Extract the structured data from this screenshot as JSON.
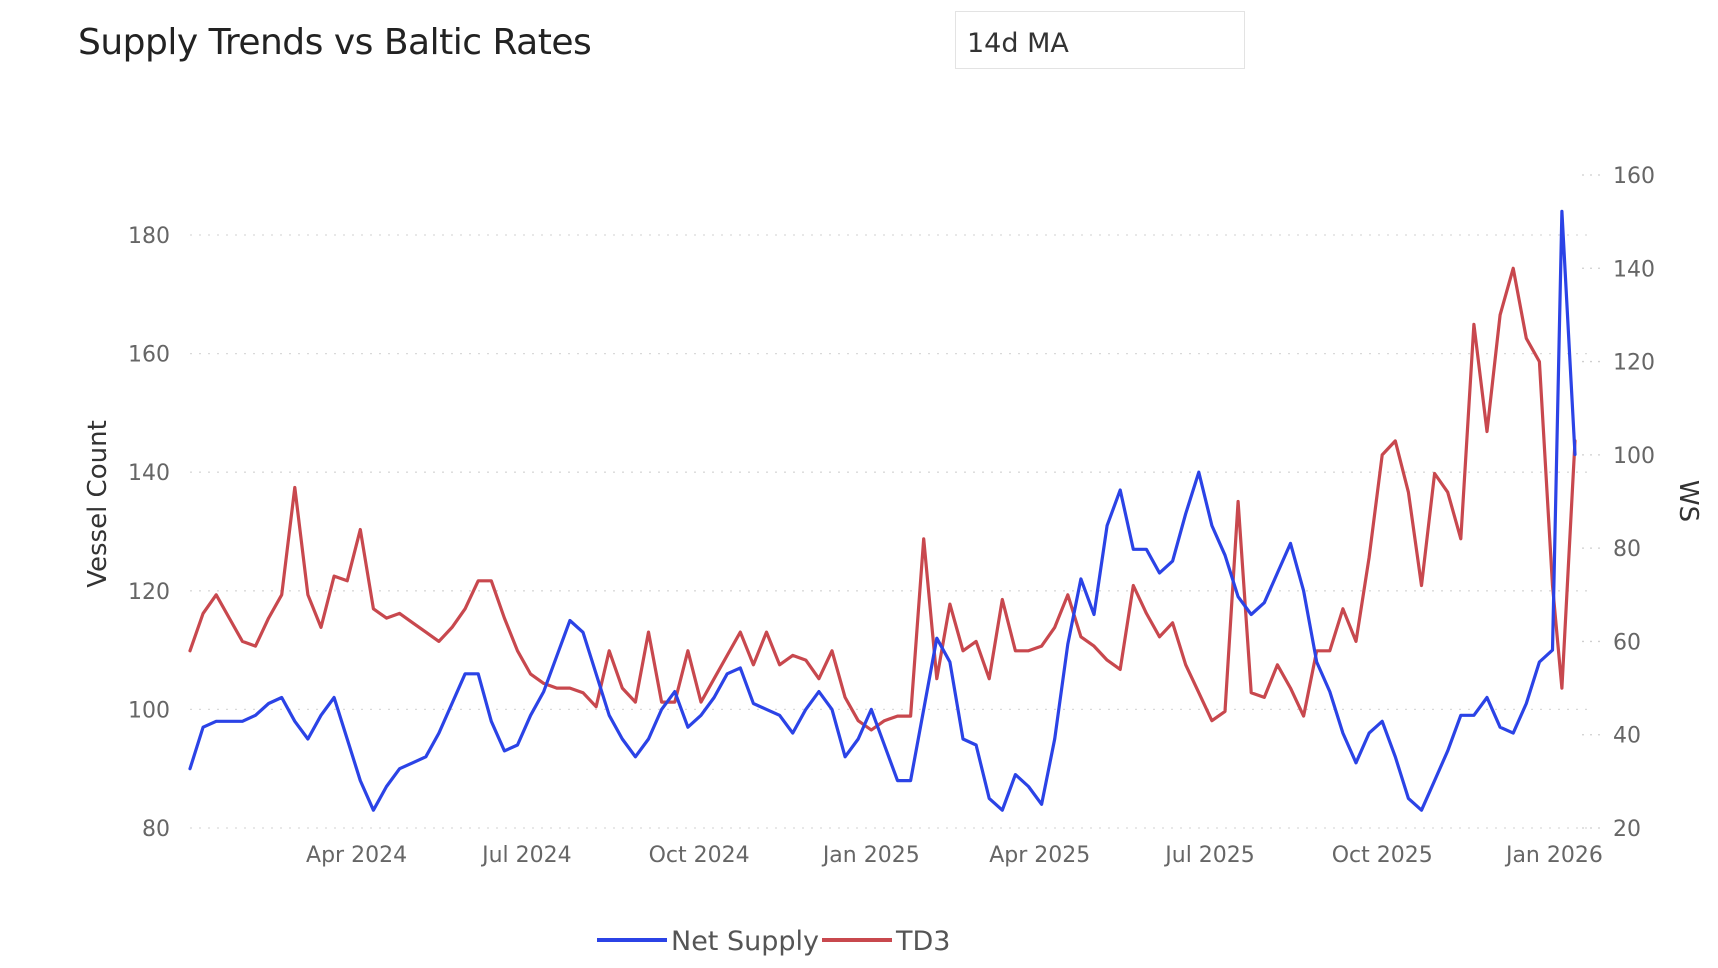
{
  "header": {
    "title": "Supply Trends vs Baltic Rates"
  },
  "controls": {
    "moving_average": "14d MA"
  },
  "chart_data": {
    "type": "line",
    "title": "Supply Trends vs Baltic Rates",
    "x_range": [
      "2024-01-03",
      "2026-01-12"
    ],
    "x_ticks": [
      {
        "label": "Apr 2024",
        "date": "2024-04-01"
      },
      {
        "label": "Jul 2024",
        "date": "2024-07-01"
      },
      {
        "label": "Oct 2024",
        "date": "2024-10-01"
      },
      {
        "label": "Jan 2025",
        "date": "2025-01-01"
      },
      {
        "label": "Apr 2025",
        "date": "2025-04-01"
      },
      {
        "label": "Jul 2025",
        "date": "2025-07-01"
      },
      {
        "label": "Oct 2025",
        "date": "2025-10-01"
      },
      {
        "label": "Jan 2026",
        "date": "2026-01-01"
      }
    ],
    "y_left": {
      "label": "Vessel Count",
      "ylim": [
        80,
        190
      ],
      "ticks": [
        80,
        100,
        120,
        140,
        160,
        180
      ]
    },
    "y_right": {
      "label": "WS",
      "ylim": [
        20,
        160
      ],
      "ticks": [
        20,
        40,
        60,
        80,
        100,
        120,
        140,
        160
      ]
    },
    "grid": true,
    "legend_position": "bottom-center",
    "series": [
      {
        "name": "Net Supply",
        "axis": "left",
        "color": "#2b43e6",
        "points": [
          [
            "2024-01-03",
            90
          ],
          [
            "2024-01-10",
            97
          ],
          [
            "2024-01-17",
            98
          ],
          [
            "2024-01-24",
            98
          ],
          [
            "2024-01-31",
            98
          ],
          [
            "2024-02-07",
            99
          ],
          [
            "2024-02-14",
            101
          ],
          [
            "2024-02-21",
            102
          ],
          [
            "2024-02-28",
            98
          ],
          [
            "2024-03-06",
            95
          ],
          [
            "2024-03-13",
            99
          ],
          [
            "2024-03-20",
            102
          ],
          [
            "2024-03-27",
            95
          ],
          [
            "2024-04-03",
            88
          ],
          [
            "2024-04-10",
            83
          ],
          [
            "2024-04-17",
            87
          ],
          [
            "2024-04-24",
            90
          ],
          [
            "2024-05-01",
            91
          ],
          [
            "2024-05-08",
            92
          ],
          [
            "2024-05-15",
            96
          ],
          [
            "2024-05-22",
            101
          ],
          [
            "2024-05-29",
            106
          ],
          [
            "2024-06-05",
            106
          ],
          [
            "2024-06-12",
            98
          ],
          [
            "2024-06-19",
            93
          ],
          [
            "2024-06-26",
            94
          ],
          [
            "2024-07-03",
            99
          ],
          [
            "2024-07-10",
            103
          ],
          [
            "2024-07-17",
            109
          ],
          [
            "2024-07-24",
            115
          ],
          [
            "2024-07-31",
            113
          ],
          [
            "2024-08-07",
            106
          ],
          [
            "2024-08-14",
            99
          ],
          [
            "2024-08-21",
            95
          ],
          [
            "2024-08-28",
            92
          ],
          [
            "2024-09-04",
            95
          ],
          [
            "2024-09-11",
            100
          ],
          [
            "2024-09-18",
            103
          ],
          [
            "2024-09-25",
            97
          ],
          [
            "2024-10-02",
            99
          ],
          [
            "2024-10-09",
            102
          ],
          [
            "2024-10-16",
            106
          ],
          [
            "2024-10-23",
            107
          ],
          [
            "2024-10-30",
            101
          ],
          [
            "2024-11-06",
            100
          ],
          [
            "2024-11-13",
            99
          ],
          [
            "2024-11-20",
            96
          ],
          [
            "2024-11-27",
            100
          ],
          [
            "2024-12-04",
            103
          ],
          [
            "2024-12-11",
            100
          ],
          [
            "2024-12-18",
            92
          ],
          [
            "2024-12-25",
            95
          ],
          [
            "2025-01-01",
            100
          ],
          [
            "2025-01-08",
            94
          ],
          [
            "2025-01-15",
            88
          ],
          [
            "2025-01-22",
            88
          ],
          [
            "2025-01-29",
            100
          ],
          [
            "2025-02-05",
            112
          ],
          [
            "2025-02-12",
            108
          ],
          [
            "2025-02-19",
            95
          ],
          [
            "2025-02-26",
            94
          ],
          [
            "2025-03-05",
            85
          ],
          [
            "2025-03-12",
            83
          ],
          [
            "2025-03-19",
            89
          ],
          [
            "2025-03-26",
            87
          ],
          [
            "2025-04-02",
            84
          ],
          [
            "2025-04-09",
            95
          ],
          [
            "2025-04-16",
            111
          ],
          [
            "2025-04-23",
            122
          ],
          [
            "2025-04-30",
            116
          ],
          [
            "2025-05-07",
            131
          ],
          [
            "2025-05-14",
            137
          ],
          [
            "2025-05-21",
            127
          ],
          [
            "2025-05-28",
            127
          ],
          [
            "2025-06-04",
            123
          ],
          [
            "2025-06-11",
            125
          ],
          [
            "2025-06-18",
            133
          ],
          [
            "2025-06-25",
            140
          ],
          [
            "2025-07-02",
            131
          ],
          [
            "2025-07-09",
            126
          ],
          [
            "2025-07-16",
            119
          ],
          [
            "2025-07-23",
            116
          ],
          [
            "2025-07-30",
            118
          ],
          [
            "2025-08-06",
            123
          ],
          [
            "2025-08-13",
            128
          ],
          [
            "2025-08-20",
            120
          ],
          [
            "2025-08-27",
            108
          ],
          [
            "2025-09-03",
            103
          ],
          [
            "2025-09-10",
            96
          ],
          [
            "2025-09-17",
            91
          ],
          [
            "2025-09-24",
            96
          ],
          [
            "2025-10-01",
            98
          ],
          [
            "2025-10-08",
            92
          ],
          [
            "2025-10-15",
            85
          ],
          [
            "2025-10-22",
            83
          ],
          [
            "2025-10-29",
            88
          ],
          [
            "2025-11-05",
            93
          ],
          [
            "2025-11-12",
            99
          ],
          [
            "2025-11-19",
            99
          ],
          [
            "2025-11-26",
            102
          ],
          [
            "2025-12-03",
            97
          ],
          [
            "2025-12-10",
            96
          ],
          [
            "2025-12-17",
            101
          ],
          [
            "2025-12-24",
            108
          ],
          [
            "2025-12-31",
            110
          ],
          [
            "2026-01-05",
            184
          ],
          [
            "2026-01-12",
            143
          ]
        ]
      },
      {
        "name": "TD3",
        "axis": "right",
        "color": "#c8484e",
        "points": [
          [
            "2024-01-03",
            58
          ],
          [
            "2024-01-10",
            66
          ],
          [
            "2024-01-17",
            70
          ],
          [
            "2024-01-24",
            65
          ],
          [
            "2024-01-31",
            60
          ],
          [
            "2024-02-07",
            59
          ],
          [
            "2024-02-14",
            65
          ],
          [
            "2024-02-21",
            70
          ],
          [
            "2024-02-28",
            93
          ],
          [
            "2024-03-06",
            70
          ],
          [
            "2024-03-13",
            63
          ],
          [
            "2024-03-20",
            74
          ],
          [
            "2024-03-27",
            73
          ],
          [
            "2024-04-03",
            84
          ],
          [
            "2024-04-10",
            67
          ],
          [
            "2024-04-17",
            65
          ],
          [
            "2024-04-24",
            66
          ],
          [
            "2024-05-01",
            64
          ],
          [
            "2024-05-08",
            62
          ],
          [
            "2024-05-15",
            60
          ],
          [
            "2024-05-22",
            63
          ],
          [
            "2024-05-29",
            67
          ],
          [
            "2024-06-05",
            73
          ],
          [
            "2024-06-12",
            73
          ],
          [
            "2024-06-19",
            65
          ],
          [
            "2024-06-26",
            58
          ],
          [
            "2024-07-03",
            53
          ],
          [
            "2024-07-10",
            51
          ],
          [
            "2024-07-17",
            50
          ],
          [
            "2024-07-24",
            50
          ],
          [
            "2024-07-31",
            49
          ],
          [
            "2024-08-07",
            46
          ],
          [
            "2024-08-14",
            58
          ],
          [
            "2024-08-21",
            50
          ],
          [
            "2024-08-28",
            47
          ],
          [
            "2024-09-04",
            62
          ],
          [
            "2024-09-11",
            47
          ],
          [
            "2024-09-18",
            47
          ],
          [
            "2024-09-25",
            58
          ],
          [
            "2024-10-02",
            47
          ],
          [
            "2024-10-09",
            52
          ],
          [
            "2024-10-16",
            57
          ],
          [
            "2024-10-23",
            62
          ],
          [
            "2024-10-30",
            55
          ],
          [
            "2024-11-06",
            62
          ],
          [
            "2024-11-13",
            55
          ],
          [
            "2024-11-20",
            57
          ],
          [
            "2024-11-27",
            56
          ],
          [
            "2024-12-04",
            52
          ],
          [
            "2024-12-11",
            58
          ],
          [
            "2024-12-18",
            48
          ],
          [
            "2024-12-25",
            43
          ],
          [
            "2025-01-01",
            41
          ],
          [
            "2025-01-08",
            43
          ],
          [
            "2025-01-15",
            44
          ],
          [
            "2025-01-22",
            44
          ],
          [
            "2025-01-29",
            82
          ],
          [
            "2025-02-05",
            52
          ],
          [
            "2025-02-12",
            68
          ],
          [
            "2025-02-19",
            58
          ],
          [
            "2025-02-26",
            60
          ],
          [
            "2025-03-05",
            52
          ],
          [
            "2025-03-12",
            69
          ],
          [
            "2025-03-19",
            58
          ],
          [
            "2025-03-26",
            58
          ],
          [
            "2025-04-02",
            59
          ],
          [
            "2025-04-09",
            63
          ],
          [
            "2025-04-16",
            70
          ],
          [
            "2025-04-23",
            61
          ],
          [
            "2025-04-30",
            59
          ],
          [
            "2025-05-07",
            56
          ],
          [
            "2025-05-14",
            54
          ],
          [
            "2025-05-21",
            72
          ],
          [
            "2025-05-28",
            66
          ],
          [
            "2025-06-04",
            61
          ],
          [
            "2025-06-11",
            64
          ],
          [
            "2025-06-18",
            55
          ],
          [
            "2025-06-25",
            49
          ],
          [
            "2025-07-02",
            43
          ],
          [
            "2025-07-09",
            45
          ],
          [
            "2025-07-16",
            90
          ],
          [
            "2025-07-23",
            49
          ],
          [
            "2025-07-30",
            48
          ],
          [
            "2025-08-06",
            55
          ],
          [
            "2025-08-13",
            50
          ],
          [
            "2025-08-20",
            44
          ],
          [
            "2025-08-27",
            58
          ],
          [
            "2025-09-03",
            58
          ],
          [
            "2025-09-10",
            67
          ],
          [
            "2025-09-17",
            60
          ],
          [
            "2025-09-24",
            78
          ],
          [
            "2025-10-01",
            100
          ],
          [
            "2025-10-08",
            103
          ],
          [
            "2025-10-15",
            92
          ],
          [
            "2025-10-22",
            72
          ],
          [
            "2025-10-29",
            96
          ],
          [
            "2025-11-05",
            92
          ],
          [
            "2025-11-12",
            82
          ],
          [
            "2025-11-19",
            128
          ],
          [
            "2025-11-26",
            105
          ],
          [
            "2025-12-03",
            130
          ],
          [
            "2025-12-10",
            140
          ],
          [
            "2025-12-17",
            125
          ],
          [
            "2025-12-24",
            120
          ],
          [
            "2025-12-31",
            72
          ],
          [
            "2026-01-05",
            50
          ],
          [
            "2026-01-12",
            103
          ]
        ]
      }
    ]
  }
}
